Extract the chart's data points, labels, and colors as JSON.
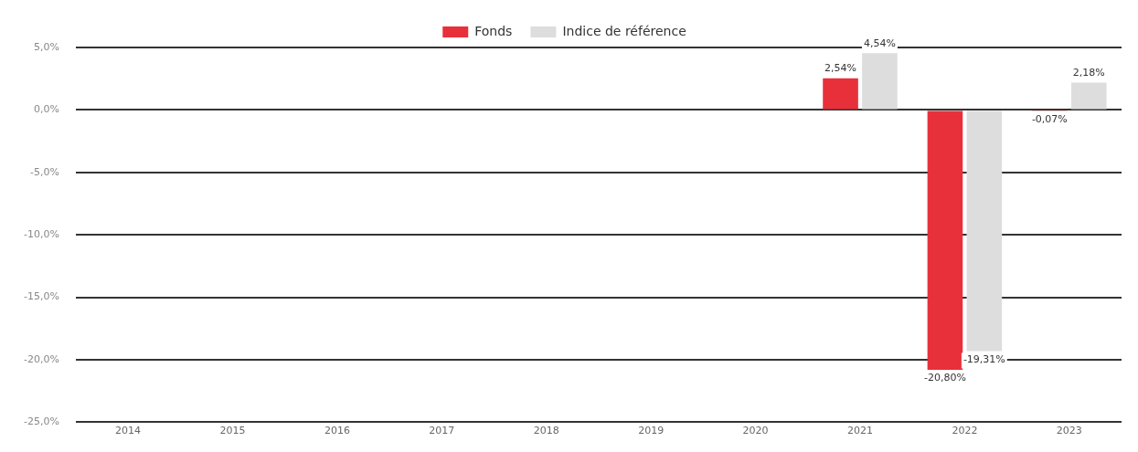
{
  "chart_data": {
    "type": "bar",
    "categories": [
      "2014",
      "2015",
      "2016",
      "2017",
      "2018",
      "2019",
      "2020",
      "2021",
      "2022",
      "2023"
    ],
    "series": [
      {
        "name": "Fonds",
        "color": "#e8303a",
        "values": [
          null,
          null,
          null,
          null,
          null,
          null,
          null,
          2.54,
          -20.8,
          -0.07
        ],
        "value_labels": [
          null,
          null,
          null,
          null,
          null,
          null,
          null,
          "2,54%",
          "-20,80%",
          "-0,07%"
        ]
      },
      {
        "name": "Indice de référence",
        "color": "#dddddd",
        "values": [
          null,
          null,
          null,
          null,
          null,
          null,
          null,
          4.54,
          -19.31,
          2.18
        ],
        "value_labels": [
          null,
          null,
          null,
          null,
          null,
          null,
          null,
          "4,54%",
          "-19,31%",
          "2,18%"
        ]
      }
    ],
    "ylim": [
      -25,
      5
    ],
    "yticks": [
      {
        "value": 5,
        "label": "5,0%"
      },
      {
        "value": 0,
        "label": "0,0%"
      },
      {
        "value": -5,
        "label": "-5,0%"
      },
      {
        "value": -10,
        "label": "-10,0%"
      },
      {
        "value": -15,
        "label": "-15,0%"
      },
      {
        "value": -20,
        "label": "-20,0%"
      },
      {
        "value": -25,
        "label": "-25,0%"
      }
    ],
    "grid": "y",
    "legend": "top"
  }
}
